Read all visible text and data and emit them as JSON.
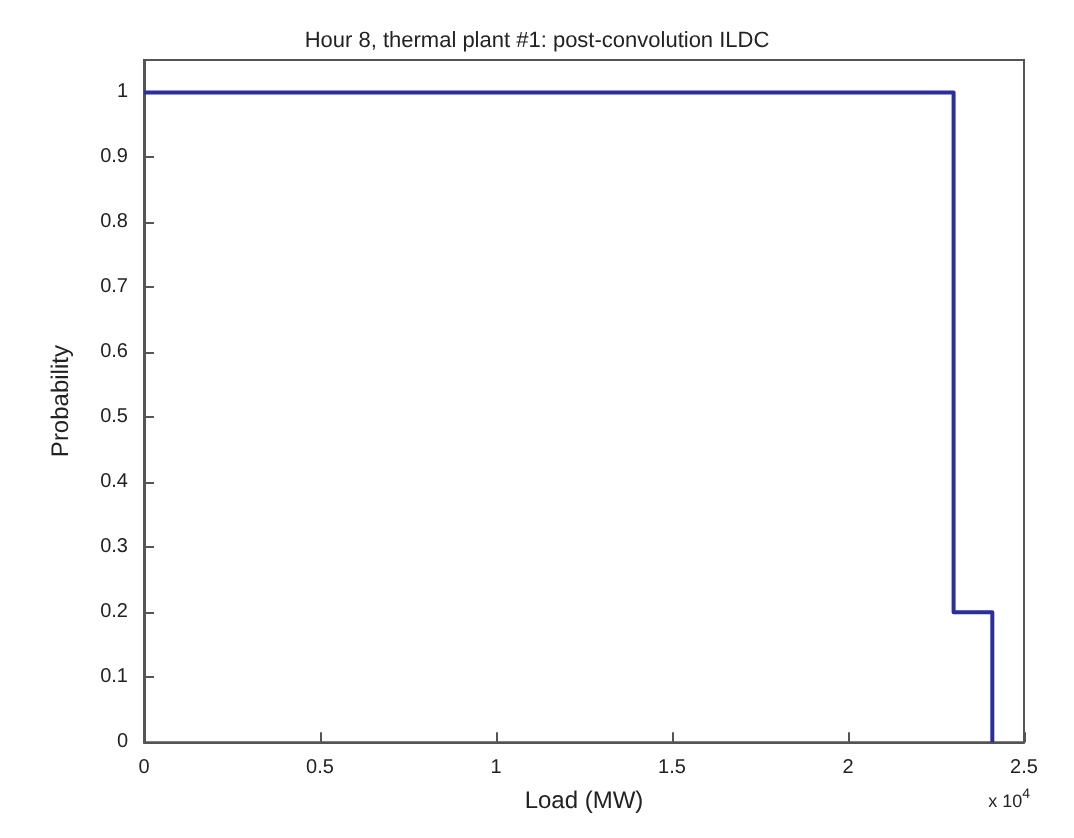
{
  "chart_data": {
    "type": "step",
    "title": "Hour 8, thermal plant #1: post-convolution ILDC",
    "xlabel": "Load (MW)",
    "ylabel": "Probability",
    "x": [
      0,
      2.3,
      2.41
    ],
    "series": [
      {
        "color": "#2b2f9c",
        "values": [
          1,
          0.2,
          0
        ]
      }
    ],
    "xlim": [
      0,
      2.5
    ],
    "xticks": [
      0,
      0.5,
      1,
      1.5,
      2,
      2.5
    ],
    "ylim": [
      0,
      1.05
    ],
    "yticks": [
      0,
      0.1,
      0.2,
      0.3,
      0.4,
      0.5,
      0.6,
      0.7,
      0.8,
      0.9,
      1
    ],
    "annotations": [
      "x 10$^{4}$"
    ],
    "grid": false
  }
}
